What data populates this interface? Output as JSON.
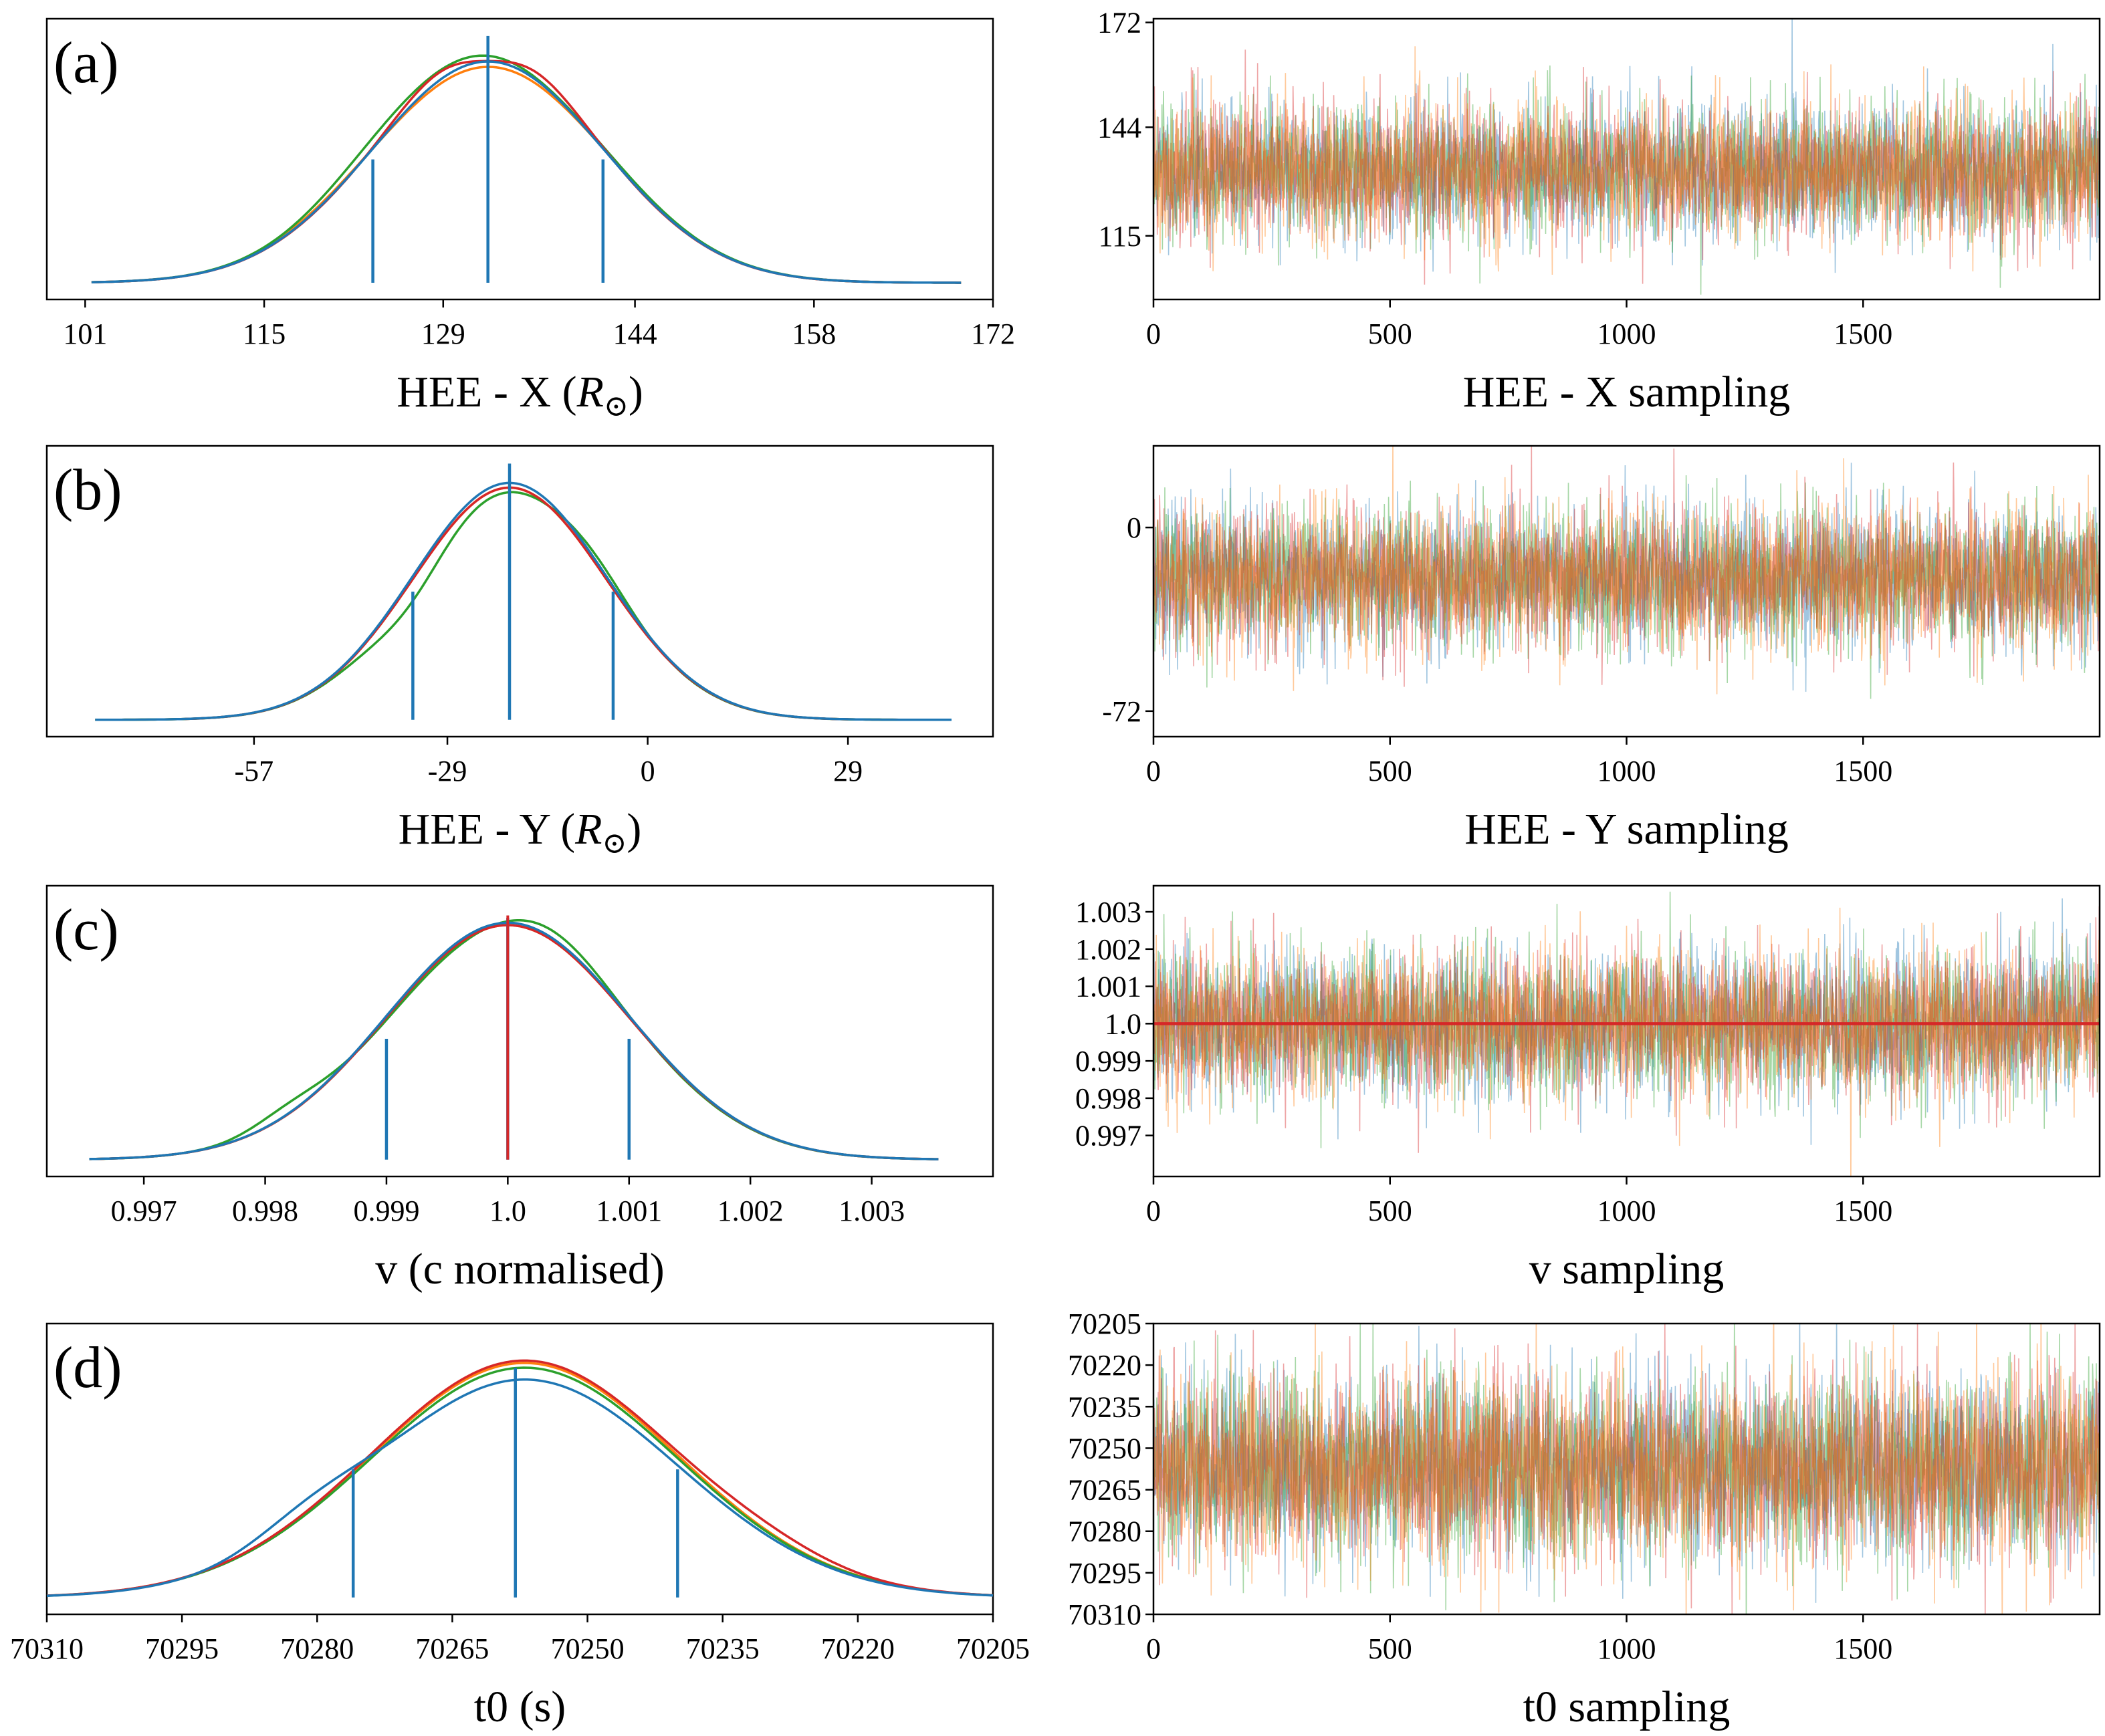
{
  "colors": {
    "blue": "#1f77b4",
    "orange": "#ff7f0e",
    "green": "#2ca02c",
    "red": "#d62728",
    "axis": "#000000"
  },
  "chart_data": [
    {
      "id": "a-posterior",
      "panel_label": "(a)",
      "type": "line",
      "xlabel": "HEE - X (",
      "xlabel_unit": "R",
      "xlabel_close": ")",
      "xlim": [
        98,
        172
      ],
      "xticks": [
        101,
        115,
        129,
        144,
        158,
        172
      ],
      "tick_labels": [
        "101",
        "115",
        "129",
        "144",
        "158",
        "172"
      ],
      "reverse_x": false,
      "kde": {
        "mu": 132.5,
        "sigma": 9,
        "ymax": 1.0,
        "ybase": 0.02
      },
      "series": [
        {
          "color_key": "orange",
          "xmin": 101.5,
          "xmax": 169.5,
          "peak": 0.94,
          "wiggles": [
            [
              -1.2,
              0.02,
              0.6
            ],
            [
              1.1,
              0.02,
              0.6
            ]
          ]
        },
        {
          "color_key": "green",
          "xmin": 101.5,
          "xmax": 169.5,
          "peak": 1.0,
          "wiggles": [
            [
              -1.0,
              0.03,
              0.5
            ],
            [
              0.5,
              -0.02,
              0.4
            ]
          ]
        },
        {
          "color_key": "red",
          "xmin": 101.5,
          "xmax": 169.5,
          "peak": 0.96,
          "wiggles": [
            [
              -0.4,
              0.05,
              0.35
            ],
            [
              0.4,
              0.05,
              0.35
            ],
            [
              0.0,
              -0.04,
              0.25
            ]
          ]
        },
        {
          "color_key": "blue",
          "xmin": 101.5,
          "xmax": 169.5,
          "peak": 0.97,
          "wiggles": []
        }
      ],
      "vlines": [
        {
          "x": 123.5,
          "top": 0.55
        },
        {
          "x": 132.5,
          "top": 1.08
        },
        {
          "x": 141.5,
          "top": 0.55
        }
      ]
    },
    {
      "id": "a-trace",
      "type": "trace",
      "xlabel": "HEE - X sampling",
      "xlim": [
        0,
        2000
      ],
      "xticks": [
        0,
        500,
        1000,
        1500
      ],
      "tick_labels": [
        "0",
        "500",
        "1000",
        "1500"
      ],
      "ylim": [
        98,
        173
      ],
      "yticks": [
        172,
        144,
        115
      ],
      "ytick_labels": [
        "172",
        "144",
        "115"
      ],
      "reverse_y": false,
      "trace": {
        "mean": 132.5,
        "sigma": 9,
        "n_samples": 2000,
        "seed": 11
      },
      "hline": null
    },
    {
      "id": "b-posterior",
      "panel_label": "(b)",
      "type": "line",
      "xlabel": "HEE - Y (",
      "xlabel_unit": "R",
      "xlabel_close": ")",
      "xlim": [
        -87,
        50
      ],
      "xticks": [
        -57,
        -29,
        0,
        29
      ],
      "tick_labels": [
        "-57",
        "-29",
        "0",
        "29"
      ],
      "reverse_x": false,
      "kde": {
        "mu": -20,
        "sigma": 14,
        "ymax": 1.0,
        "ybase": 0.02
      },
      "series": [
        {
          "color_key": "orange",
          "xmin": -80,
          "xmax": 44,
          "peak": 0.98,
          "wiggles": []
        },
        {
          "color_key": "green",
          "xmin": -80,
          "xmax": 44,
          "peak": 0.96,
          "wiggles": [
            [
              -1.0,
              -0.08,
              0.35
            ],
            [
              0.9,
              0.05,
              0.35
            ]
          ]
        },
        {
          "color_key": "red",
          "xmin": -67,
          "xmax": 29,
          "peak": 0.98,
          "wiggles": []
        },
        {
          "color_key": "blue",
          "xmin": -80,
          "xmax": 44,
          "peak": 1.0,
          "wiggles": []
        }
      ],
      "vlines": [
        {
          "x": -34,
          "top": 0.55
        },
        {
          "x": -20,
          "top": 1.08
        },
        {
          "x": -5,
          "top": 0.55
        }
      ]
    },
    {
      "id": "b-trace",
      "type": "trace",
      "xlabel": "HEE - Y sampling",
      "xlim": [
        0,
        2000
      ],
      "xticks": [
        0,
        500,
        1000,
        1500
      ],
      "tick_labels": [
        "0",
        "500",
        "1000",
        "1500"
      ],
      "ylim": [
        -82,
        32
      ],
      "yticks": [
        0,
        -72
      ],
      "ytick_labels": [
        "0",
        "-72"
      ],
      "reverse_y": false,
      "trace": {
        "mean": -20,
        "sigma": 14,
        "n_samples": 2000,
        "seed": 23
      },
      "hline": null
    },
    {
      "id": "c-posterior",
      "panel_label": "(c)",
      "type": "line",
      "xlabel": "v (c normalised)",
      "xlabel_unit": "",
      "xlabel_close": "",
      "xlim": [
        0.9962,
        1.004
      ],
      "xticks": [
        0.997,
        0.998,
        0.999,
        1.0,
        1.001,
        1.002,
        1.003
      ],
      "tick_labels": [
        "0.997",
        "0.998",
        "0.999",
        "1.0",
        "1.001",
        "1.002",
        "1.003"
      ],
      "reverse_x": false,
      "kde": {
        "mu": 1.0,
        "sigma": 0.001,
        "ymax": 1.0,
        "ybase": 0.02
      },
      "series": [
        {
          "color_key": "orange",
          "xmin": 0.99655,
          "xmax": 1.00355,
          "peak": 0.99,
          "wiggles": []
        },
        {
          "color_key": "green",
          "xmin": 0.99655,
          "xmax": 1.00355,
          "peak": 0.97,
          "wiggles": [
            [
              -1.8,
              0.05,
              0.3
            ],
            [
              0.4,
              0.06,
              0.4
            ]
          ]
        },
        {
          "color_key": "red",
          "xmin": 0.99655,
          "xmax": 1.00355,
          "peak": 0.99,
          "wiggles": []
        },
        {
          "color_key": "blue",
          "xmin": 0.99655,
          "xmax": 1.00355,
          "peak": 1.0,
          "wiggles": []
        }
      ],
      "vlines": [
        {
          "x": 0.999,
          "top": 0.52
        },
        {
          "x": 1.0,
          "top": 1.02
        },
        {
          "x": 1.001,
          "top": 0.52
        }
      ],
      "truth_line": {
        "x": 1.0,
        "color_key": "red"
      }
    },
    {
      "id": "c-trace",
      "type": "trace",
      "xlabel": "v sampling",
      "xlim": [
        0,
        2000
      ],
      "xticks": [
        0,
        500,
        1000,
        1500
      ],
      "tick_labels": [
        "0",
        "500",
        "1000",
        "1500"
      ],
      "ylim": [
        0.9959,
        1.0037
      ],
      "yticks": [
        1.003,
        1.002,
        1.001,
        1.0,
        0.999,
        0.998,
        0.997
      ],
      "ytick_labels": [
        "1.003",
        "1.002",
        "1.001",
        "1.0",
        "0.999",
        "0.998",
        "0.997"
      ],
      "reverse_y": false,
      "trace": {
        "mean": 1.0,
        "sigma": 0.001,
        "n_samples": 2000,
        "seed": 37
      },
      "hline": {
        "y": 1.0,
        "color_key": "red"
      }
    },
    {
      "id": "d-posterior",
      "panel_label": "(d)",
      "type": "line",
      "xlabel": "t0 (s)",
      "xlabel_unit": "",
      "xlabel_close": "",
      "xlim": [
        70205,
        70310
      ],
      "xticks": [
        70310,
        70295,
        70280,
        70265,
        70250,
        70235,
        70220,
        70205
      ],
      "tick_labels": [
        "70310",
        "70295",
        "70280",
        "70265",
        "70250",
        "70235",
        "70220",
        "70205"
      ],
      "reverse_x": true,
      "kde": {
        "mu": 70257,
        "sigma": 17,
        "ymax": 1.0,
        "ybase": 0.02
      },
      "series": [
        {
          "color_key": "orange",
          "xmin": 70205,
          "xmax": 70310,
          "peak": 0.99,
          "wiggles": []
        },
        {
          "color_key": "green",
          "xmin": 70205,
          "xmax": 70310,
          "peak": 0.97,
          "wiggles": []
        },
        {
          "color_key": "red",
          "xmin": 70205,
          "xmax": 70310,
          "peak": 1.0,
          "wiggles": [
            [
              -1.6,
              0.03,
              0.4
            ]
          ]
        },
        {
          "color_key": "blue",
          "xmin": 70205,
          "xmax": 70310,
          "peak": 0.92,
          "wiggles": [
            [
              1.4,
              0.08,
              0.35
            ]
          ]
        }
      ],
      "vlines": [
        {
          "x": 70276,
          "top": 0.55
        },
        {
          "x": 70258,
          "top": 0.97
        },
        {
          "x": 70240,
          "top": 0.55
        }
      ]
    },
    {
      "id": "d-trace",
      "type": "trace",
      "xlabel": "t0 sampling",
      "xlim": [
        0,
        2000
      ],
      "xticks": [
        0,
        500,
        1000,
        1500
      ],
      "tick_labels": [
        "0",
        "500",
        "1000",
        "1500"
      ],
      "ylim": [
        70205,
        70310
      ],
      "yticks": [
        70205,
        70220,
        70235,
        70250,
        70265,
        70280,
        70295,
        70310
      ],
      "ytick_labels": [
        "70205",
        "70220",
        "70235",
        "70250",
        "70265",
        "70280",
        "70295",
        "70310"
      ],
      "reverse_y": true,
      "trace": {
        "mean": 70257,
        "sigma": 17,
        "n_samples": 2000,
        "seed": 53
      },
      "hline": null
    }
  ]
}
